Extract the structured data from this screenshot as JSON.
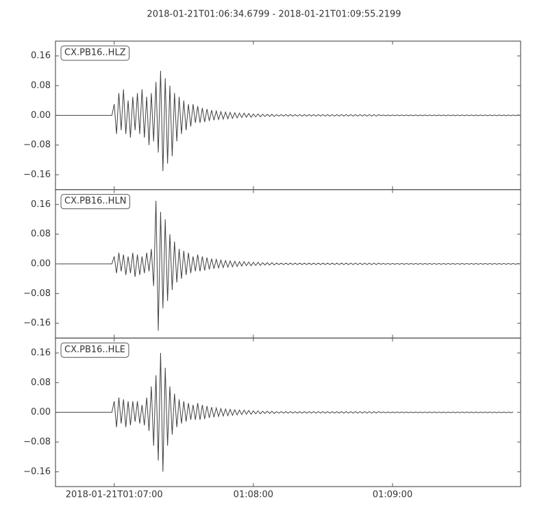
{
  "chart_data": {
    "type": "line",
    "title": "2018-01-21T01:06:34.6799  -  2018-01-21T01:09:55.2199",
    "xlim": [
      "2018-01-21T01:06:34.6799",
      "2018-01-21T01:09:55.2199"
    ],
    "xticks": [
      "2018-01-21T01:07:00",
      {
        "value": "2018-01-21T01:08:00",
        "label": "01:08:00"
      },
      {
        "value": "2018-01-21T01:09:00",
        "label": "01:09:00"
      }
    ],
    "ylim": [
      -0.2,
      0.2
    ],
    "yticks": [
      {
        "value": -0.16,
        "label": "−0.16"
      },
      {
        "value": -0.08,
        "label": "−0.08"
      },
      {
        "value": 0,
        "label": "0.00"
      },
      0.08,
      0.16
    ],
    "x": [
      "2018-01-21T01:06:35",
      "2018-01-21T01:06:36",
      "2018-01-21T01:06:37",
      "2018-01-21T01:06:38",
      "2018-01-21T01:06:39",
      "2018-01-21T01:06:40",
      "2018-01-21T01:06:41",
      "2018-01-21T01:06:42",
      "2018-01-21T01:06:43",
      "2018-01-21T01:06:44",
      "2018-01-21T01:06:45",
      "2018-01-21T01:06:46",
      "2018-01-21T01:06:47",
      "2018-01-21T01:06:48",
      "2018-01-21T01:06:49",
      "2018-01-21T01:06:50",
      "2018-01-21T01:06:51",
      "2018-01-21T01:06:52",
      "2018-01-21T01:06:53",
      "2018-01-21T01:06:54",
      "2018-01-21T01:06:55",
      "2018-01-21T01:06:56",
      "2018-01-21T01:06:57",
      "2018-01-21T01:06:58",
      "2018-01-21T01:06:59",
      "2018-01-21T01:07:00",
      "2018-01-21T01:07:01",
      "2018-01-21T01:07:02",
      "2018-01-21T01:07:03",
      "2018-01-21T01:07:04",
      "2018-01-21T01:07:05",
      "2018-01-21T01:07:06",
      "2018-01-21T01:07:07",
      "2018-01-21T01:07:08",
      "2018-01-21T01:07:09",
      "2018-01-21T01:07:10",
      "2018-01-21T01:07:11",
      "2018-01-21T01:07:12",
      "2018-01-21T01:07:13",
      "2018-01-21T01:07:14",
      "2018-01-21T01:07:15",
      "2018-01-21T01:07:16",
      "2018-01-21T01:07:17",
      "2018-01-21T01:07:18",
      "2018-01-21T01:07:19",
      "2018-01-21T01:07:20",
      "2018-01-21T01:07:21",
      "2018-01-21T01:07:22",
      "2018-01-21T01:07:23",
      "2018-01-21T01:07:24",
      "2018-01-21T01:07:25",
      "2018-01-21T01:07:26",
      "2018-01-21T01:07:27",
      "2018-01-21T01:07:28",
      "2018-01-21T01:07:29",
      "2018-01-21T01:07:30",
      "2018-01-21T01:07:31",
      "2018-01-21T01:07:32",
      "2018-01-21T01:07:33",
      "2018-01-21T01:07:34",
      "2018-01-21T01:07:35",
      "2018-01-21T01:07:36",
      "2018-01-21T01:07:37",
      "2018-01-21T01:07:38",
      "2018-01-21T01:07:39",
      "2018-01-21T01:07:40",
      "2018-01-21T01:07:41",
      "2018-01-21T01:07:42",
      "2018-01-21T01:07:43",
      "2018-01-21T01:07:44",
      "2018-01-21T01:07:45",
      "2018-01-21T01:07:46",
      "2018-01-21T01:07:47",
      "2018-01-21T01:07:48",
      "2018-01-21T01:07:49",
      "2018-01-21T01:07:50",
      "2018-01-21T01:07:51",
      "2018-01-21T01:07:52",
      "2018-01-21T01:07:53",
      "2018-01-21T01:07:54",
      "2018-01-21T01:07:55",
      "2018-01-21T01:07:56",
      "2018-01-21T01:07:57",
      "2018-01-21T01:07:58",
      "2018-01-21T01:07:59",
      "2018-01-21T01:08:00",
      "2018-01-21T01:08:01",
      "2018-01-21T01:08:02",
      "2018-01-21T01:08:03",
      "2018-01-21T01:08:04",
      "2018-01-21T01:08:05",
      "2018-01-21T01:08:06",
      "2018-01-21T01:08:07",
      "2018-01-21T01:08:08",
      "2018-01-21T01:08:09",
      "2018-01-21T01:08:10",
      "2018-01-21T01:08:11",
      "2018-01-21T01:08:12",
      "2018-01-21T01:08:13",
      "2018-01-21T01:08:14",
      "2018-01-21T01:08:15",
      "2018-01-21T01:08:16",
      "2018-01-21T01:08:17",
      "2018-01-21T01:08:18",
      "2018-01-21T01:08:19",
      "2018-01-21T01:08:20",
      "2018-01-21T01:08:21",
      "2018-01-21T01:08:22",
      "2018-01-21T01:08:23",
      "2018-01-21T01:08:24",
      "2018-01-21T01:08:25",
      "2018-01-21T01:08:26",
      "2018-01-21T01:08:27",
      "2018-01-21T01:08:28",
      "2018-01-21T01:08:29",
      "2018-01-21T01:08:30",
      "2018-01-21T01:08:31",
      "2018-01-21T01:08:32",
      "2018-01-21T01:08:33",
      "2018-01-21T01:08:34",
      "2018-01-21T01:08:35",
      "2018-01-21T01:08:36",
      "2018-01-21T01:08:37",
      "2018-01-21T01:08:38",
      "2018-01-21T01:08:39",
      "2018-01-21T01:08:40",
      "2018-01-21T01:08:41",
      "2018-01-21T01:08:42",
      "2018-01-21T01:08:43",
      "2018-01-21T01:08:44",
      "2018-01-21T01:08:45",
      "2018-01-21T01:08:46",
      "2018-01-21T01:08:47",
      "2018-01-21T01:08:48",
      "2018-01-21T01:08:49",
      "2018-01-21T01:08:50",
      "2018-01-21T01:08:51",
      "2018-01-21T01:08:52",
      "2018-01-21T01:08:53",
      "2018-01-21T01:08:54",
      "2018-01-21T01:08:55",
      "2018-01-21T01:08:56",
      "2018-01-21T01:08:57",
      "2018-01-21T01:08:58",
      "2018-01-21T01:08:59",
      "2018-01-21T01:09:00",
      "2018-01-21T01:09:01",
      "2018-01-21T01:09:02",
      "2018-01-21T01:09:03",
      "2018-01-21T01:09:04",
      "2018-01-21T01:09:05",
      "2018-01-21T01:09:06",
      "2018-01-21T01:09:07",
      "2018-01-21T01:09:08",
      "2018-01-21T01:09:09",
      "2018-01-21T01:09:10",
      "2018-01-21T01:09:11",
      "2018-01-21T01:09:12",
      "2018-01-21T01:09:13",
      "2018-01-21T01:09:14",
      "2018-01-21T01:09:15",
      "2018-01-21T01:09:16",
      "2018-01-21T01:09:17",
      "2018-01-21T01:09:18",
      "2018-01-21T01:09:19",
      "2018-01-21T01:09:20",
      "2018-01-21T01:09:21",
      "2018-01-21T01:09:22",
      "2018-01-21T01:09:23",
      "2018-01-21T01:09:24",
      "2018-01-21T01:09:25",
      "2018-01-21T01:09:26",
      "2018-01-21T01:09:27",
      "2018-01-21T01:09:28",
      "2018-01-21T01:09:29",
      "2018-01-21T01:09:30",
      "2018-01-21T01:09:31",
      "2018-01-21T01:09:32",
      "2018-01-21T01:09:33",
      "2018-01-21T01:09:34",
      "2018-01-21T01:09:35",
      "2018-01-21T01:09:36",
      "2018-01-21T01:09:37",
      "2018-01-21T01:09:38",
      "2018-01-21T01:09:39",
      "2018-01-21T01:09:40",
      "2018-01-21T01:09:41",
      "2018-01-21T01:09:42",
      "2018-01-21T01:09:43",
      "2018-01-21T01:09:44",
      "2018-01-21T01:09:45",
      "2018-01-21T01:09:46",
      "2018-01-21T01:09:47",
      "2018-01-21T01:09:48",
      "2018-01-21T01:09:49",
      "2018-01-21T01:09:50",
      "2018-01-21T01:09:51",
      "2018-01-21T01:09:52",
      "2018-01-21T01:09:53",
      "2018-01-21T01:09:54",
      "2018-01-21T01:09:55"
    ],
    "series": [
      {
        "name": "CX.PB16..HLZ",
        "color": "#404040",
        "values": [
          0,
          0,
          0,
          0,
          0,
          0,
          0,
          0,
          0,
          0,
          0,
          0,
          0,
          0,
          0,
          0,
          0,
          0,
          0,
          0,
          0,
          0,
          0,
          0,
          0,
          0.03,
          -0.05,
          0.06,
          -0.04,
          0.07,
          -0.05,
          0.04,
          -0.06,
          0.05,
          -0.04,
          0.06,
          -0.05,
          0.07,
          -0.06,
          0.05,
          -0.08,
          0.06,
          -0.07,
          0.09,
          -0.1,
          0.12,
          -0.15,
          0.1,
          -0.13,
          0.08,
          -0.11,
          0.06,
          -0.07,
          0.05,
          -0.05,
          0.04,
          -0.04,
          0.03,
          -0.03,
          0.03,
          -0.02,
          0.025,
          -0.02,
          0.02,
          -0.018,
          0.017,
          -0.015,
          0.014,
          -0.013,
          0.012,
          -0.011,
          0.01,
          -0.01,
          0.009,
          -0.009,
          0.008,
          -0.008,
          0.007,
          -0.007,
          0.006,
          -0.006,
          0.006,
          -0.005,
          0.005,
          -0.005,
          0.004,
          -0.004,
          0.004,
          -0.004,
          0.003,
          -0.003,
          0.003,
          -0.003,
          0.003,
          -0.003,
          0.002,
          -0.002,
          0.002,
          -0.002,
          0.002,
          -0.002,
          0.002,
          -0.002,
          0.002,
          -0.002,
          0.002,
          -0.002,
          0.002,
          -0.002,
          0.002,
          -0.002,
          0.002,
          -0.002,
          0.002,
          -0.002,
          0.002,
          -0.002,
          0.002,
          -0.002,
          0.002,
          -0.002,
          0.002,
          -0.002,
          0.002,
          -0.002,
          0.002,
          -0.002,
          0.002,
          -0.002,
          0.002,
          -0.002,
          0.002,
          -0.002,
          0.002,
          -0.002,
          0.002,
          -0.002,
          0.002,
          -0.002,
          0.002,
          -0.001,
          0.001,
          -0.001,
          0.001,
          -0.001,
          0.001,
          -0.001,
          0.001,
          -0.001,
          0.001,
          -0.001,
          0.001,
          -0.001,
          0.001,
          -0.001,
          0.001,
          -0.001,
          0.001,
          -0.001,
          0.001,
          -0.001,
          0.001,
          -0.001,
          0.001,
          -0.001,
          0.001,
          -0.001,
          0.001,
          -0.001,
          0.001,
          -0.001,
          0.001,
          -0.001,
          0.001,
          -0.001,
          0.001,
          -0.001,
          0.001,
          -0.001,
          0.001,
          -0.001,
          0.001,
          -0.001,
          0.001,
          -0.001,
          0.001,
          -0.001,
          0.001,
          -0.001,
          0.001,
          -0.001,
          0.001,
          -0.001,
          0.001,
          -0.001,
          0.001,
          -0.001,
          0.001,
          -0.001,
          0.001,
          0
        ]
      },
      {
        "name": "CX.PB16..HLN",
        "color": "#404040",
        "values": [
          0,
          0,
          0,
          0,
          0,
          0,
          0,
          0,
          0,
          0,
          0,
          0,
          0,
          0,
          0,
          0,
          0,
          0,
          0,
          0,
          0,
          0,
          0,
          0,
          0,
          0.02,
          -0.025,
          0.03,
          -0.02,
          0.025,
          -0.03,
          0.02,
          -0.025,
          0.03,
          -0.035,
          0.025,
          -0.03,
          0.02,
          -0.025,
          0.03,
          -0.02,
          0.04,
          -0.06,
          0.17,
          -0.18,
          0.14,
          -0.12,
          0.12,
          -0.1,
          0.08,
          -0.07,
          0.06,
          -0.05,
          0.04,
          -0.04,
          0.035,
          -0.03,
          0.03,
          -0.025,
          0.02,
          -0.02,
          0.025,
          -0.02,
          0.02,
          -0.018,
          0.017,
          -0.015,
          0.014,
          -0.013,
          0.012,
          -0.011,
          0.01,
          -0.01,
          0.009,
          -0.009,
          0.008,
          -0.008,
          0.007,
          -0.007,
          0.006,
          -0.006,
          0.006,
          -0.005,
          0.005,
          -0.005,
          0.004,
          -0.004,
          0.004,
          -0.004,
          0.003,
          -0.003,
          0.003,
          -0.003,
          0.003,
          -0.003,
          0.002,
          -0.002,
          0.002,
          -0.002,
          0.002,
          -0.002,
          0.002,
          -0.002,
          0.002,
          -0.002,
          0.002,
          -0.002,
          0.002,
          -0.002,
          0.002,
          -0.002,
          0.002,
          -0.002,
          0.002,
          -0.002,
          0.002,
          -0.002,
          0.002,
          -0.002,
          0.002,
          -0.002,
          0.002,
          -0.002,
          0.002,
          -0.002,
          0.002,
          -0.002,
          0.002,
          -0.002,
          0.002,
          -0.002,
          0.002,
          -0.002,
          0.002,
          -0.002,
          0.002,
          -0.002,
          0.002,
          -0.002,
          0.002,
          -0.001,
          0.001,
          -0.001,
          0.001,
          -0.001,
          0.001,
          -0.001,
          0.001,
          -0.001,
          0.001,
          -0.001,
          0.001,
          -0.001,
          0.001,
          -0.001,
          0.001,
          -0.001,
          0.001,
          -0.001,
          0.001,
          -0.001,
          0.001,
          -0.001,
          0.001,
          -0.001,
          0.001,
          -0.001,
          0.001,
          -0.001,
          0.001,
          -0.001,
          0.001,
          -0.001,
          0.001,
          -0.001,
          0.001,
          -0.001,
          0.001,
          -0.001,
          0.001,
          -0.001,
          0.001,
          -0.001,
          0.001,
          -0.001,
          0.001,
          -0.001,
          0.001,
          -0.001,
          0.001,
          -0.001,
          0.001,
          -0.001,
          0.001,
          -0.001,
          0.001,
          -0.001,
          0.001,
          -0.001,
          0.001,
          0
        ]
      },
      {
        "name": "CX.PB16..HLE",
        "color": "#404040",
        "values": [
          0,
          0,
          0,
          0,
          0,
          0,
          0,
          0,
          0,
          0,
          0,
          0,
          0,
          0,
          0,
          0,
          0,
          0,
          0,
          0,
          0,
          0,
          0,
          0,
          0,
          0.03,
          -0.04,
          0.04,
          -0.03,
          0.035,
          -0.04,
          0.03,
          -0.035,
          0.03,
          -0.025,
          0.03,
          -0.03,
          0.02,
          -0.035,
          0.04,
          -0.05,
          0.07,
          -0.09,
          0.1,
          -0.13,
          0.16,
          -0.16,
          0.12,
          -0.09,
          0.07,
          -0.06,
          0.05,
          -0.04,
          0.035,
          -0.03,
          0.03,
          -0.025,
          0.025,
          -0.02,
          0.02,
          -0.02,
          0.025,
          -0.02,
          0.02,
          -0.018,
          0.017,
          -0.015,
          0.014,
          -0.013,
          0.012,
          -0.011,
          0.01,
          -0.01,
          0.009,
          -0.009,
          0.008,
          -0.008,
          0.007,
          -0.007,
          0.006,
          -0.006,
          0.006,
          -0.005,
          0.005,
          -0.005,
          0.004,
          -0.004,
          0.004,
          -0.004,
          0.003,
          -0.003,
          0.003,
          -0.003,
          0.003,
          -0.003,
          0.002,
          -0.002,
          0.002,
          -0.002,
          0.002,
          -0.002,
          0.002,
          -0.002,
          0.002,
          -0.002,
          0.002,
          -0.002,
          0.002,
          -0.002,
          0.002,
          -0.002,
          0.002,
          -0.002,
          0.002,
          -0.002,
          0.002,
          -0.002,
          0.002,
          -0.002,
          0.002,
          -0.002,
          0.002,
          -0.002,
          0.002,
          -0.002,
          0.002,
          -0.002,
          0.002,
          -0.002,
          0.002,
          -0.002,
          0.002,
          -0.002,
          0.002,
          -0.002,
          0.002,
          -0.002,
          0.002,
          -0.002,
          0.002,
          -0.001,
          0.001,
          -0.001,
          0.001,
          -0.001,
          0.001,
          -0.001,
          0.001,
          -0.001,
          0.001,
          -0.001,
          0.001,
          -0.001,
          0.001,
          -0.001,
          0.001,
          -0.001,
          0.001,
          -0.001,
          0.001,
          -0.001,
          0.001,
          -0.001,
          0.001,
          -0.001,
          0.001,
          -0.001,
          0.001,
          -0.001,
          0.001,
          -0.001,
          0.001,
          -0.001,
          0.001,
          -0.001,
          0.001,
          -0.001,
          0.001,
          -0.001,
          0.001,
          -0.001,
          0.001,
          -0.001,
          0.001,
          -0.001,
          0.001,
          -0.001,
          0.001,
          -0.001,
          0.001,
          -0.001,
          0.001,
          -0.001,
          0.001,
          -0.001,
          0.001,
          -0.001,
          0.001,
          null,
          null,
          null
        ]
      }
    ]
  }
}
